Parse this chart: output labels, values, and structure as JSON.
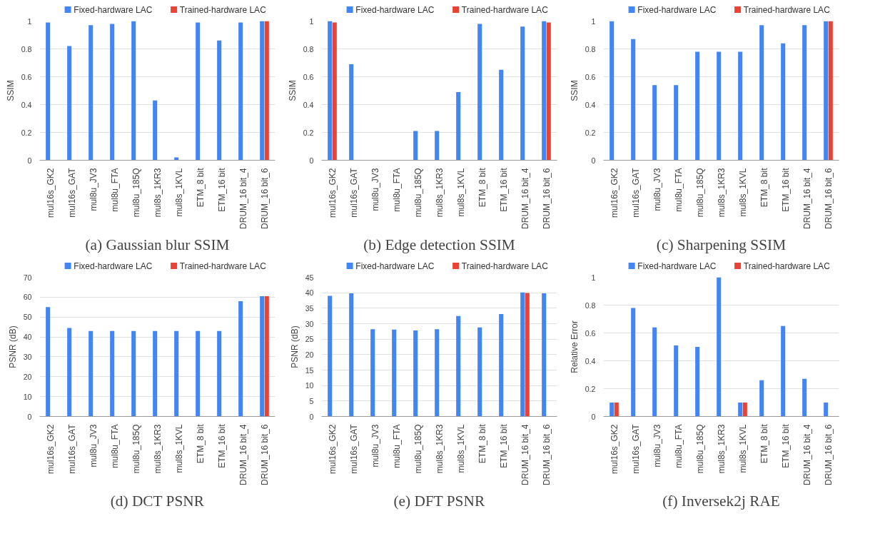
{
  "chart_data": [
    {
      "type": "bar",
      "title": "(a) Gaussian blur SSIM",
      "ylabel": "SSIM",
      "categories": [
        "mul16s_GK2",
        "mul16s_GAT",
        "mul8u_JV3",
        "mul8u_FTA",
        "mul8u_185Q",
        "mul8s_1KR3",
        "mul8s_1KVL",
        "ETM_8 bit",
        "ETM_16 bit",
        "DRUM_16 bit_4",
        "DRUM_16 bit_6"
      ],
      "series": [
        {
          "name": "Fixed-hardware LAC",
          "color": "#4285f4",
          "values": [
            0.99,
            0.82,
            0.97,
            0.98,
            1.0,
            0.43,
            0.02,
            0.99,
            0.86,
            0.99,
            1.0
          ]
        },
        {
          "name": "Trained-hardware LAC",
          "color": "#ea4335",
          "values": [
            null,
            null,
            null,
            null,
            null,
            null,
            null,
            null,
            null,
            null,
            1.0
          ]
        }
      ],
      "ylim": [
        0,
        1
      ],
      "yticks": [
        0,
        0.2,
        0.4,
        0.6,
        0.8,
        1
      ],
      "grid": "y",
      "legend": "top"
    },
    {
      "type": "bar",
      "title": "(b) Edge detection SSIM",
      "ylabel": "SSIM",
      "categories": [
        "mul16s_GK2",
        "mul16s_GAT",
        "mul8u_JV3",
        "mul8u_FTA",
        "mul8u_185Q",
        "mul8s_1KR3",
        "mul8s_1KVL",
        "ETM_8 bit",
        "ETM_16 bit",
        "DRUM_16 bit_4",
        "DRUM_16 bit_6"
      ],
      "series": [
        {
          "name": "Fixed-hardware LAC",
          "color": "#4285f4",
          "values": [
            1.0,
            0.69,
            0,
            0,
            0.21,
            0.21,
            0.49,
            0.98,
            0.65,
            0.96,
            1.0
          ]
        },
        {
          "name": "Trained-hardware LAC",
          "color": "#ea4335",
          "values": [
            0.99,
            null,
            null,
            null,
            null,
            null,
            null,
            null,
            null,
            null,
            0.99
          ]
        }
      ],
      "ylim": [
        0,
        1
      ],
      "yticks": [
        0,
        0.2,
        0.4,
        0.6,
        0.8,
        1
      ],
      "grid": "y",
      "legend": "top"
    },
    {
      "type": "bar",
      "title": "(c) Sharpening SSIM",
      "ylabel": "SSIM",
      "categories": [
        "mul16s_GK2",
        "mul16s_GAT",
        "mul8u_JV3",
        "mul8u_FTA",
        "mul8u_185Q",
        "mul8s_1KR3",
        "mul8s_1KVL",
        "ETM_8 bit",
        "ETM_16 bit",
        "DRUM_16 bit_4",
        "DRUM_16 bit_6"
      ],
      "series": [
        {
          "name": "Fixed-hardware LAC",
          "color": "#4285f4",
          "values": [
            1.0,
            0.87,
            0.54,
            0.54,
            0.78,
            0.78,
            0.78,
            0.97,
            0.84,
            0.97,
            1.0
          ]
        },
        {
          "name": "Trained-hardware LAC",
          "color": "#ea4335",
          "values": [
            null,
            null,
            null,
            null,
            null,
            null,
            null,
            null,
            null,
            null,
            1.0
          ]
        }
      ],
      "ylim": [
        0,
        1
      ],
      "yticks": [
        0,
        0.2,
        0.4,
        0.6,
        0.8,
        1
      ],
      "grid": "y",
      "legend": "top"
    },
    {
      "type": "bar",
      "title": "(d) DCT PSNR",
      "ylabel": "PSNR (dB)",
      "categories": [
        "mul16s_GK2",
        "mul16s_GAT",
        "mul8u_JV3",
        "mul8u_FTA",
        "mul8u_185Q",
        "mul8s_1KR3",
        "mul8s_1KVL",
        "ETM_8 bit",
        "ETM_16 bit",
        "DRUM_16 bit_4",
        "DRUM_16 bit_6"
      ],
      "series": [
        {
          "name": "Fixed-hardware LAC",
          "color": "#4285f4",
          "values": [
            55,
            44.5,
            43,
            43,
            43,
            43,
            43,
            43,
            43,
            58,
            60.5
          ]
        },
        {
          "name": "Trained-hardware LAC",
          "color": "#ea4335",
          "values": [
            null,
            null,
            null,
            null,
            null,
            null,
            null,
            null,
            null,
            null,
            60.5
          ]
        }
      ],
      "ylim": [
        0,
        70
      ],
      "yticks": [
        0,
        10,
        20,
        30,
        40,
        50,
        60,
        70
      ],
      "grid": "y",
      "legend": "top"
    },
    {
      "type": "bar",
      "title": "(e) DFT PSNR",
      "ylabel": "PSNR (dB)",
      "categories": [
        "mul16s_GK2",
        "mul16s_GAT",
        "mul8u_JV3",
        "mul8u_FTA",
        "mul8u_185Q",
        "mul8s_1KR3",
        "mul8s_1KVL",
        "ETM_8 bit",
        "ETM_16 bit",
        "DRUM_16 bit_4",
        "DRUM_16 bit_6"
      ],
      "series": [
        {
          "name": "Fixed-hardware LAC",
          "color": "#4285f4",
          "values": [
            39,
            39.8,
            28.2,
            28.1,
            27.8,
            28.2,
            32.5,
            28.8,
            33.1,
            40.1,
            39.8
          ]
        },
        {
          "name": "Trained-hardware LAC",
          "color": "#ea4335",
          "values": [
            null,
            null,
            null,
            null,
            null,
            null,
            null,
            null,
            null,
            39.9,
            null
          ]
        }
      ],
      "ylim": [
        0,
        45
      ],
      "yticks": [
        0,
        5,
        10,
        15,
        20,
        25,
        30,
        35,
        40,
        45
      ],
      "grid": "y",
      "legend": "top"
    },
    {
      "type": "bar",
      "title": "(f) Inversek2j RAE",
      "ylabel": "Relative Error",
      "categories": [
        "mul16s_GK2",
        "mul16s_GAT",
        "mul8u_JV3",
        "mul8u_FTA",
        "mul8u_185Q",
        "mul8s_1KR3",
        "mul8s_1KVL",
        "ETM_8 bit",
        "ETM_16 bit",
        "DRUM_16 bit_4",
        "DRUM_16 bit_6"
      ],
      "series": [
        {
          "name": "Fixed-hardware LAC",
          "color": "#4285f4",
          "values": [
            0.1,
            0.78,
            0.64,
            0.51,
            0.5,
            1.0,
            0.1,
            0.26,
            0.65,
            0.27,
            0.1
          ]
        },
        {
          "name": "Trained-hardware LAC",
          "color": "#ea4335",
          "values": [
            0.1,
            null,
            null,
            null,
            null,
            null,
            0.1,
            null,
            null,
            null,
            null
          ]
        }
      ],
      "ylim": [
        0,
        1
      ],
      "yticks": [
        0,
        0.2,
        0.4,
        0.6,
        0.8,
        1
      ],
      "grid": "y",
      "legend": "top"
    }
  ]
}
